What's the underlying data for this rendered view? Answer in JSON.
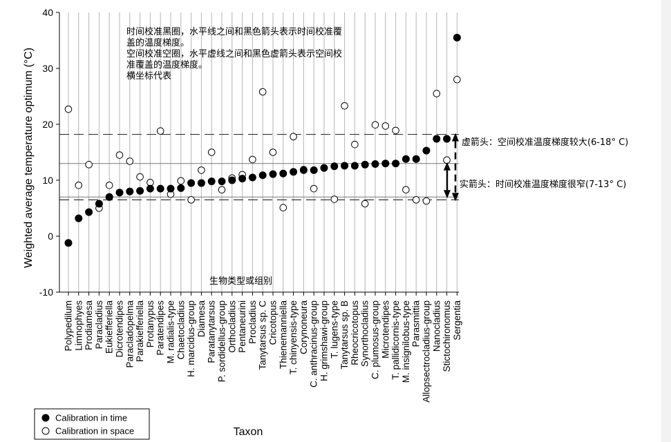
{
  "chart_data": {
    "type": "scatter",
    "ylabel": "Weighted average temperature optimum (°C)",
    "xlabel": "Taxon",
    "ylim": [
      -10,
      40
    ],
    "yticks": [
      -10,
      0,
      10,
      20,
      30,
      40
    ],
    "grid": "vertical lines at each taxon",
    "legend_position": "bottom-left",
    "categories": [
      "Polypedilum",
      "Limnophyes",
      "Prodiamesa",
      "Paracladius",
      "Eukiefferiella",
      "Dicrotendipes",
      "Paracladopelma",
      "Parakiefferiella",
      "Protanypus",
      "Paratendipes",
      "M. radialis-type",
      "Chaetocladius",
      "H. marcidus-group",
      "Diamesa",
      "Paratanytarsus",
      "P. sordidellus-group",
      "Orthocladius",
      "Pentaneurini",
      "Procladius",
      "Tanytarsus sp. C",
      "Cricotopus",
      "Thienemanniella",
      "T. chinyensis-type",
      "Corynoneura",
      "C. anthracinus-group",
      "H. grimshawi-group",
      "T. lugens-type",
      "Tanytarsus sp. B",
      "Rheocricotopus",
      "Synorthocladius",
      "C. plumosus-group",
      "Microtendipes",
      "T. pallidicornis-type",
      "M. insignilobus-type",
      "Parasmittia",
      "Allopsectrocladius-group",
      "Nanocladius",
      "Stictochironomus",
      "Sergentia"
    ],
    "series": [
      {
        "name": "Calibration in time",
        "marker": "filled",
        "values": [
          -1.2,
          3.2,
          4.3,
          5.8,
          7.0,
          7.8,
          8.0,
          8.1,
          8.5,
          8.5,
          8.5,
          8.6,
          9.5,
          9.5,
          9.8,
          9.8,
          10.0,
          10.3,
          10.5,
          10.9,
          11.1,
          11.2,
          11.5,
          11.8,
          11.8,
          12.2,
          12.5,
          12.6,
          12.6,
          12.8,
          12.9,
          13.0,
          13.0,
          13.8,
          13.8,
          15.3,
          17.4,
          17.4,
          35.5
        ]
      },
      {
        "name": "Calibration in space",
        "marker": "open",
        "values": [
          22.7,
          9.1,
          12.8,
          5.0,
          9.1,
          14.5,
          13.4,
          10.6,
          9.6,
          18.8,
          7.5,
          9.9,
          6.5,
          11.8,
          15.0,
          8.3,
          10.4,
          11.0,
          13.7,
          25.8,
          15.0,
          5.1,
          17.8,
          11.9,
          8.5,
          12.2,
          6.6,
          23.3,
          16.4,
          5.8,
          19.9,
          19.7,
          18.9,
          8.3,
          6.5,
          6.3,
          25.5,
          13.6,
          28.0
        ]
      }
    ],
    "reference_lines": {
      "time_solid": [
        7,
        13
      ],
      "space_dashed": [
        6.5,
        18.2
      ]
    },
    "annotations": {
      "note_lines": [
        "时间校准黑圈，水平线之间和黑色箭头表示时间校准覆",
        "盖的温度梯度。",
        "空间校准空圈，水平虚线之间和黑色虚箭头表示空间校",
        "准覆盖的温度梯度。",
        "横坐标代表"
      ],
      "bottom_note": "生物类型或组别",
      "dashed_arrow_label": "虚箭头：空间校准温度梯度较大(6-18° C)",
      "solid_arrow_label": "实箭头：时间校准温度梯度很窄(7-13° C)"
    },
    "colors": {
      "background": "#ffffff",
      "marker": "#000000",
      "grid": "#b4b4b4"
    }
  }
}
